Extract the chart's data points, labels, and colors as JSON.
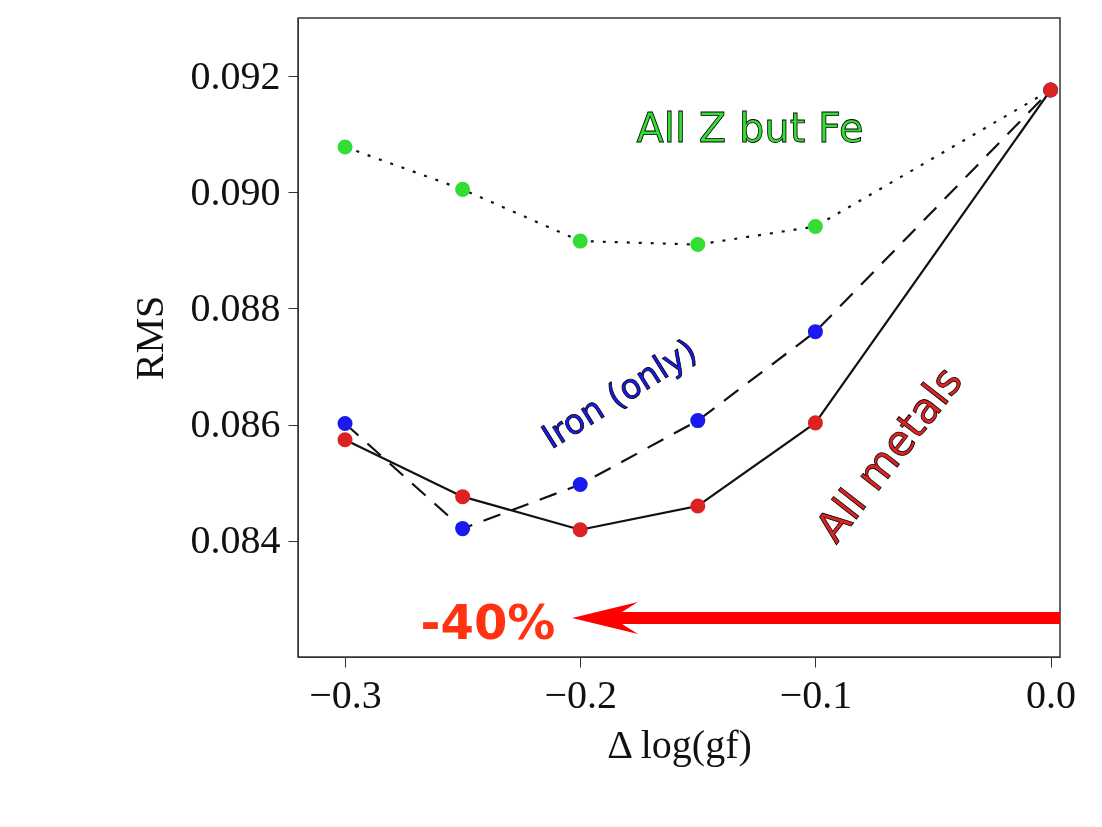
{
  "chart_data": {
    "type": "line",
    "xlabel": "Δ log(gf)",
    "ylabel": "RMS",
    "x": [
      -0.3,
      -0.25,
      -0.2,
      -0.15,
      -0.1,
      0.0
    ],
    "series": [
      {
        "color": "#33dd33",
        "line_style": "dotted",
        "values": [
          0.09078,
          0.09005,
          0.08916,
          0.0891,
          0.08941,
          0.09176
        ]
      },
      {
        "color": "#1a1aee",
        "line_style": "dashed",
        "values": [
          0.08602,
          0.08421,
          0.08497,
          0.08607,
          0.0876,
          0.09176
        ]
      },
      {
        "color": "#dd2222",
        "line_style": "solid",
        "values": [
          0.08574,
          0.08476,
          0.08419,
          0.0846,
          0.08603,
          0.09176
        ]
      }
    ],
    "xlim": [
      -0.32,
      0.004
    ],
    "ylim": [
      0.082,
      0.093
    ],
    "xticks": [
      {
        "value": -0.3,
        "label": "−0.3"
      },
      {
        "value": -0.2,
        "label": "−0.2"
      },
      {
        "value": -0.1,
        "label": "−0.1"
      },
      {
        "value": 0.0,
        "label": "0.0"
      }
    ],
    "yticks": [
      {
        "value": 0.084,
        "label": "0.084"
      },
      {
        "value": 0.086,
        "label": "0.086"
      },
      {
        "value": 0.088,
        "label": "0.088"
      },
      {
        "value": 0.09,
        "label": "0.090"
      },
      {
        "value": 0.092,
        "label": "0.092"
      }
    ],
    "marker": "circle",
    "grid": false,
    "annotations": [
      "All Z but Fe",
      "Iron (only)",
      "All metals",
      "-40%"
    ]
  }
}
